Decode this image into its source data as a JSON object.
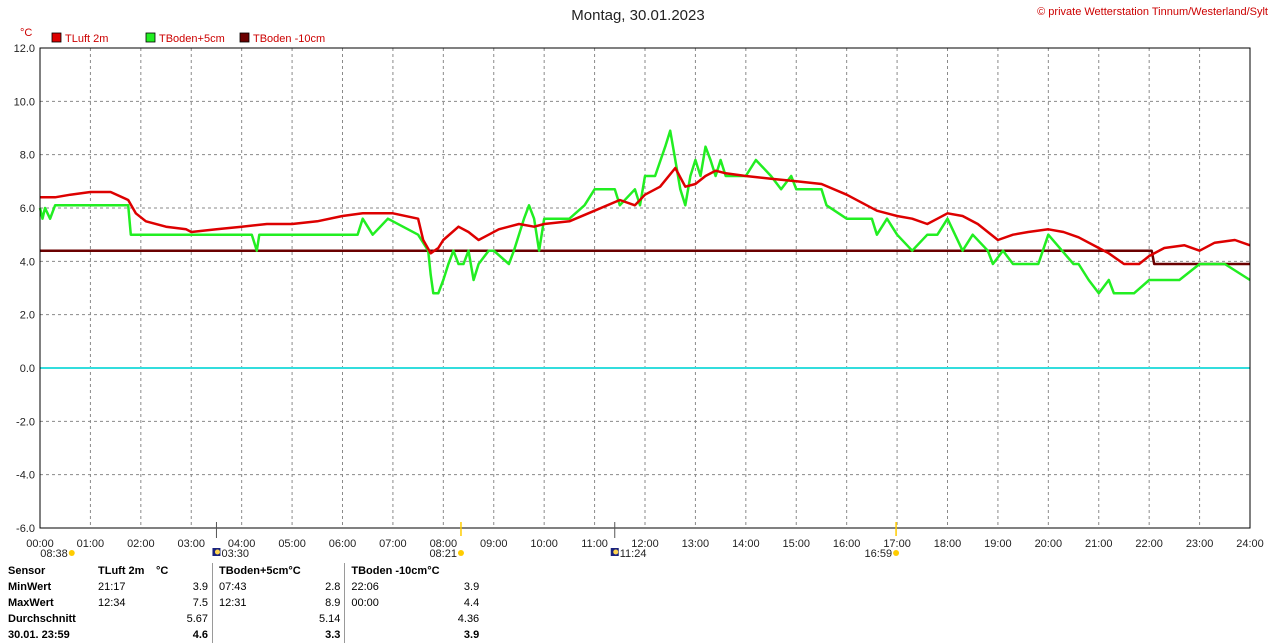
{
  "header": {
    "title": "Montag, 30.01.2023",
    "copyright": "© private Wetterstation Tinnum/Westerland/Sylt",
    "y_unit": "°C"
  },
  "legend": [
    {
      "name": "TLuft 2m",
      "color": "#dd0000"
    },
    {
      "name": "TBoden+5cm",
      "color": "#22ee22"
    },
    {
      "name": "TBoden -10cm",
      "color": "#6b0000"
    }
  ],
  "events": [
    {
      "time": "08:38",
      "x": 0.63,
      "kind": "sunrise-marker"
    },
    {
      "time": "03:30",
      "x": 3.5,
      "kind": "moon-marker"
    },
    {
      "time": "08:21",
      "x": 8.35,
      "kind": "sunrise-marker"
    },
    {
      "time": "11:24",
      "x": 11.4,
      "kind": "moon-marker"
    },
    {
      "time": "16:59",
      "x": 16.98,
      "kind": "sunset-marker"
    }
  ],
  "chart_data": {
    "type": "line",
    "title": "Montag, 30.01.2023",
    "xlabel": "",
    "ylabel": "°C",
    "xlim": [
      0,
      24
    ],
    "ylim": [
      -6,
      12
    ],
    "grid": true,
    "legend_position": "top-left",
    "x_ticks": [
      "00:00",
      "01:00",
      "02:00",
      "03:00",
      "04:00",
      "05:00",
      "06:00",
      "07:00",
      "08:00",
      "09:00",
      "10:00",
      "11:00",
      "12:00",
      "13:00",
      "14:00",
      "15:00",
      "16:00",
      "17:00",
      "18:00",
      "19:00",
      "20:00",
      "21:00",
      "22:00",
      "23:00",
      "24:00"
    ],
    "y_ticks": [
      "12.0",
      "10.0",
      "8.0",
      "6.0",
      "4.0",
      "2.0",
      "0.0",
      "-2.0",
      "-4.0",
      "-6.0"
    ],
    "reference_line": {
      "y": 0,
      "color": "#33dddd"
    },
    "series": [
      {
        "name": "TLuft 2m",
        "color": "#dd0000",
        "x": [
          0,
          0.3,
          0.6,
          1.0,
          1.4,
          1.75,
          1.9,
          2.1,
          2.5,
          2.9,
          3.0,
          3.5,
          4.0,
          4.5,
          5.0,
          5.5,
          6.0,
          6.4,
          7.0,
          7.5,
          7.6,
          7.75,
          7.9,
          8.0,
          8.3,
          8.5,
          8.7,
          8.9,
          9.1,
          9.5,
          9.8,
          10.0,
          10.5,
          11.0,
          11.5,
          11.8,
          12.0,
          12.3,
          12.6,
          12.8,
          13.0,
          13.2,
          13.4,
          13.6,
          14.0,
          14.5,
          15.0,
          15.5,
          16.0,
          16.3,
          16.6,
          17.0,
          17.3,
          17.6,
          17.8,
          18.0,
          18.3,
          18.6,
          19.0,
          19.3,
          19.6,
          20.0,
          20.3,
          20.6,
          21.0,
          21.2,
          21.5,
          21.8,
          22.0,
          22.3,
          22.7,
          23.0,
          23.3,
          23.7,
          24.0
        ],
        "values": [
          6.4,
          6.4,
          6.5,
          6.6,
          6.6,
          6.3,
          5.8,
          5.5,
          5.3,
          5.2,
          5.1,
          5.2,
          5.3,
          5.4,
          5.4,
          5.5,
          5.7,
          5.8,
          5.8,
          5.6,
          4.8,
          4.3,
          4.5,
          4.8,
          5.3,
          5.1,
          4.8,
          5.0,
          5.2,
          5.4,
          5.3,
          5.4,
          5.5,
          5.9,
          6.3,
          6.1,
          6.5,
          6.8,
          7.5,
          6.8,
          6.9,
          7.2,
          7.4,
          7.3,
          7.2,
          7.1,
          7.0,
          6.9,
          6.5,
          6.2,
          5.9,
          5.7,
          5.6,
          5.4,
          5.6,
          5.8,
          5.7,
          5.4,
          4.8,
          5.0,
          5.1,
          5.2,
          5.1,
          4.9,
          4.5,
          4.3,
          3.9,
          3.9,
          4.2,
          4.5,
          4.6,
          4.4,
          4.7,
          4.8,
          4.6
        ]
      },
      {
        "name": "TBoden+5cm",
        "color": "#22ee22",
        "x": [
          0,
          0.05,
          0.1,
          0.2,
          0.3,
          1.0,
          1.75,
          1.8,
          2.5,
          3.0,
          4.2,
          4.3,
          4.35,
          4.6,
          5.0,
          6.0,
          6.3,
          6.4,
          6.6,
          6.9,
          7.5,
          7.7,
          7.75,
          7.8,
          7.9,
          8.0,
          8.1,
          8.2,
          8.3,
          8.4,
          8.5,
          8.6,
          8.7,
          8.9,
          9.0,
          9.3,
          9.4,
          9.6,
          9.7,
          9.8,
          9.9,
          10.0,
          10.5,
          10.8,
          11.0,
          11.4,
          11.5,
          11.8,
          11.9,
          12.0,
          12.2,
          12.4,
          12.5,
          12.6,
          12.7,
          12.8,
          12.9,
          13.0,
          13.1,
          13.2,
          13.3,
          13.4,
          13.5,
          13.6,
          13.8,
          14.0,
          14.2,
          14.5,
          14.7,
          14.9,
          15.0,
          15.5,
          15.6,
          16.0,
          16.5,
          16.6,
          16.8,
          17.0,
          17.3,
          17.6,
          17.8,
          18.0,
          18.3,
          18.5,
          18.8,
          18.9,
          19.1,
          19.3,
          19.6,
          19.8,
          20.0,
          20.5,
          20.6,
          20.8,
          21.0,
          21.2,
          21.3,
          21.7,
          22.0,
          22.6,
          23.0,
          23.5,
          24.0
        ],
        "values": [
          6.0,
          5.6,
          6.0,
          5.6,
          6.1,
          6.1,
          6.1,
          5.0,
          5.0,
          5.0,
          5.0,
          4.4,
          5.0,
          5.0,
          5.0,
          5.0,
          5.0,
          5.6,
          5.0,
          5.6,
          5.0,
          4.4,
          3.5,
          2.8,
          2.8,
          3.3,
          3.9,
          4.4,
          3.9,
          3.9,
          4.4,
          3.3,
          3.9,
          4.4,
          4.4,
          3.9,
          4.4,
          5.6,
          6.1,
          5.6,
          4.4,
          5.6,
          5.6,
          6.1,
          6.7,
          6.7,
          6.1,
          6.7,
          6.1,
          7.2,
          7.2,
          8.3,
          8.9,
          7.8,
          6.7,
          6.1,
          7.2,
          7.8,
          7.2,
          8.3,
          7.8,
          7.2,
          7.8,
          7.2,
          7.2,
          7.2,
          7.8,
          7.2,
          6.7,
          7.2,
          6.7,
          6.7,
          6.1,
          5.6,
          5.6,
          5.0,
          5.6,
          5.0,
          4.4,
          5.0,
          5.0,
          5.6,
          4.4,
          5.0,
          4.4,
          3.9,
          4.4,
          3.9,
          3.9,
          3.9,
          5.0,
          3.9,
          3.9,
          3.3,
          2.8,
          3.3,
          2.8,
          2.8,
          3.3,
          3.3,
          3.9,
          3.9,
          3.3
        ]
      },
      {
        "name": "TBoden -10cm",
        "color": "#6b0000",
        "x": [
          0,
          22.05,
          22.1,
          24.0
        ],
        "values": [
          4.4,
          4.4,
          3.9,
          3.9
        ]
      }
    ]
  },
  "stats": {
    "headers": [
      "Sensor",
      "TLuft 2m",
      "°C",
      "TBoden+5cm",
      "°C",
      "TBoden -10cm",
      "°C"
    ],
    "rows": [
      {
        "label": "MinWert",
        "cells": [
          "21:17",
          "3.9",
          "07:43",
          "2.8",
          "22:06",
          "3.9"
        ]
      },
      {
        "label": "MaxWert",
        "cells": [
          "12:34",
          "7.5",
          "12:31",
          "8.9",
          "00:00",
          "4.4"
        ]
      },
      {
        "label": "Durchschnitt",
        "cells": [
          "",
          "5.67",
          "",
          "5.14",
          "",
          "4.36"
        ]
      },
      {
        "label": "30.01. 23:59",
        "cells": [
          "",
          "4.6",
          "",
          "3.3",
          "",
          "3.9"
        ]
      }
    ]
  }
}
